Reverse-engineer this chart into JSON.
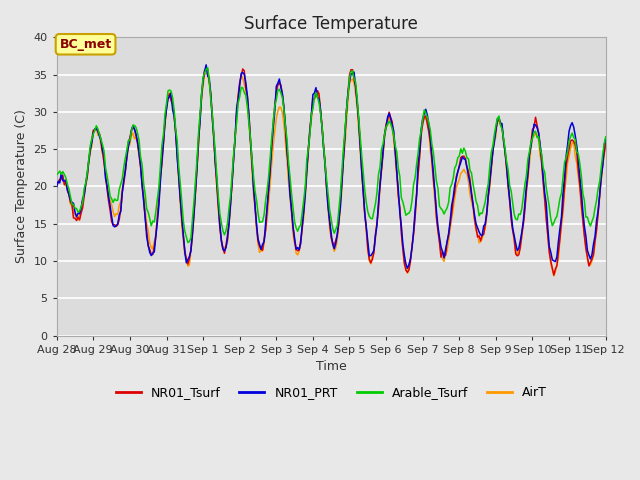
{
  "title": "Surface Temperature",
  "xlabel": "Time",
  "ylabel": "Surface Temperature (C)",
  "ylim": [
    0,
    40
  ],
  "yticks": [
    0,
    5,
    10,
    15,
    20,
    25,
    30,
    35,
    40
  ],
  "fig_bg_color": "#e8e8e8",
  "plot_bg_color": "#dcdcdc",
  "annotation_text": "BC_met",
  "annotation_color": "#8b0000",
  "annotation_bg": "#ffff99",
  "annotation_border": "#c8a000",
  "series_colors": {
    "NR01_Tsurf": "#dd0000",
    "NR01_PRT": "#0000dd",
    "Arable_Tsurf": "#00cc00",
    "AirT": "#ff9900"
  },
  "xtick_labels": [
    "Aug 28",
    "Aug 29",
    "Aug 30",
    "Aug 31",
    "Sep 1",
    "Sep 2",
    "Sep 3",
    "Sep 4",
    "Sep 5",
    "Sep 6",
    "Sep 7",
    "Sep 8",
    "Sep 9",
    "Sep 10",
    "Sep 11",
    "Sep 12"
  ],
  "xtick_positions": [
    0,
    1,
    2,
    3,
    4,
    5,
    6,
    7,
    8,
    9,
    10,
    11,
    12,
    13,
    14,
    15
  ],
  "daily_peaks_nr01": [
    20.5,
    28.0,
    27.5,
    32.0,
    36.0,
    35.5,
    34.0,
    32.5,
    36.0,
    29.5,
    30.0,
    23.5,
    29.0,
    28.5,
    27.0,
    27.0
  ],
  "daily_mins_nr01": [
    13.5,
    17.0,
    12.5,
    9.5,
    10.0,
    12.5,
    10.5,
    12.0,
    12.0,
    9.0,
    8.0,
    12.5,
    13.0,
    9.5,
    7.5,
    11.0
  ],
  "daily_peaks_prt": [
    20.5,
    28.0,
    27.5,
    32.0,
    36.0,
    35.5,
    34.0,
    32.5,
    36.0,
    29.5,
    31.0,
    23.5,
    29.0,
    28.5,
    28.5,
    27.0
  ],
  "daily_mins_prt": [
    14.5,
    17.5,
    12.5,
    9.5,
    10.0,
    12.5,
    11.0,
    11.5,
    12.0,
    9.5,
    8.5,
    13.0,
    13.5,
    10.5,
    9.0,
    11.5
  ],
  "daily_peaks_arable": [
    21.5,
    28.0,
    27.5,
    32.5,
    36.0,
    33.5,
    33.0,
    32.0,
    36.0,
    28.5,
    30.0,
    24.5,
    29.0,
    27.5,
    27.0,
    27.5
  ],
  "daily_mins_arable": [
    14.5,
    18.0,
    18.0,
    12.5,
    12.5,
    14.5,
    15.5,
    13.0,
    14.5,
    16.0,
    16.0,
    17.0,
    16.0,
    15.5,
    15.0,
    15.0
  ],
  "daily_peaks_airt": [
    20.5,
    27.5,
    26.5,
    32.0,
    35.5,
    35.0,
    30.5,
    32.5,
    35.0,
    29.0,
    30.0,
    21.5,
    28.5,
    27.5,
    25.5,
    27.0
  ],
  "daily_mins_airt": [
    13.5,
    17.5,
    15.0,
    9.5,
    9.5,
    12.5,
    10.0,
    11.5,
    11.5,
    9.0,
    8.0,
    12.0,
    13.0,
    9.5,
    7.5,
    11.0
  ],
  "peak_hour": 14.0,
  "line_width": 1.1
}
